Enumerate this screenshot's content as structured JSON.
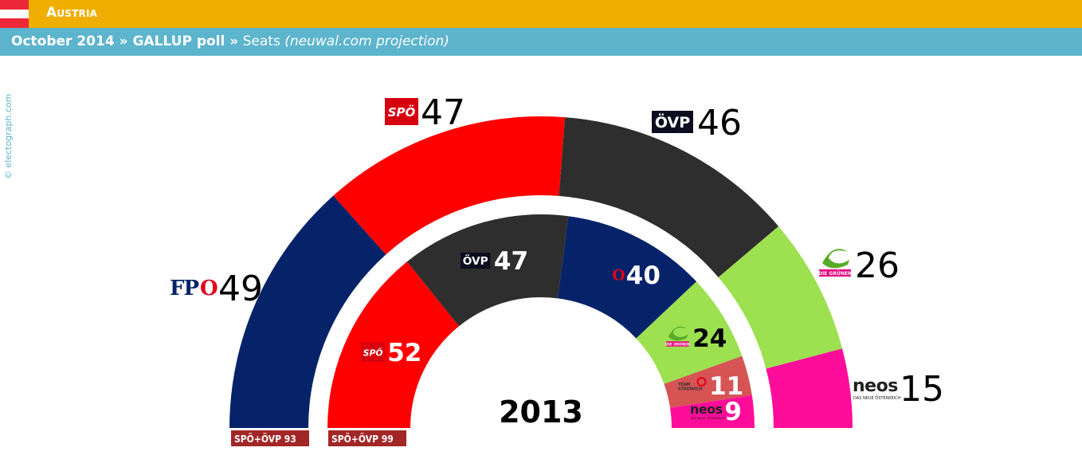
{
  "header": {
    "country": "Austria",
    "subtitle_poll": "October 2014 » GALLUP poll »",
    "subtitle_seats": " Seats ",
    "subtitle_projection": "(neuwal.com projection)",
    "credit": "© electograph.com",
    "flag_colors": [
      "#ed2939",
      "#ffffff",
      "#ed2939"
    ]
  },
  "chart_data": [
    {
      "type": "semicircle-parliament",
      "title": "October 2014 » GALLUP poll » Seats (neuwal.com projection)",
      "total_seats": 183,
      "series": [
        {
          "name": "FPÖ",
          "logo_text": "FPÖ",
          "value": 49,
          "color": "#06236a"
        },
        {
          "name": "SPÖ",
          "logo_text": "SPÖ",
          "value": 47,
          "color": "#fe0000"
        },
        {
          "name": "ÖVP",
          "logo_text": "ÖVP",
          "value": 46,
          "color": "#2e2e2e"
        },
        {
          "name": "Grüne",
          "logo_text": "DIE GRÜNEN",
          "value": 26,
          "color": "#9de050"
        },
        {
          "name": "NEOS",
          "logo_text": "neos",
          "value": 15,
          "color": "#fe0d9a"
        }
      ],
      "coalition_badge": "SPÖ+ÖVP 93"
    },
    {
      "type": "semicircle-parliament",
      "title": "2013",
      "total_seats": 183,
      "series": [
        {
          "name": "SPÖ",
          "logo_text": "SPÖ",
          "value": 52,
          "color": "#fe0000"
        },
        {
          "name": "ÖVP",
          "logo_text": "ÖVP",
          "value": 47,
          "color": "#2e2e2e"
        },
        {
          "name": "FPÖ",
          "logo_text": "FPÖ",
          "value": 40,
          "color": "#06236a"
        },
        {
          "name": "Grüne",
          "logo_text": "DIE GRÜNEN",
          "value": 24,
          "color": "#9de050"
        },
        {
          "name": "Team Stronach",
          "logo_text": "TEAM STRONACH",
          "value": 11,
          "color": "#d65454"
        },
        {
          "name": "NEOS",
          "logo_text": "neos",
          "value": 9,
          "color": "#fe0d9a"
        }
      ],
      "coalition_badge": "SPÖ+ÖVP 99"
    }
  ]
}
